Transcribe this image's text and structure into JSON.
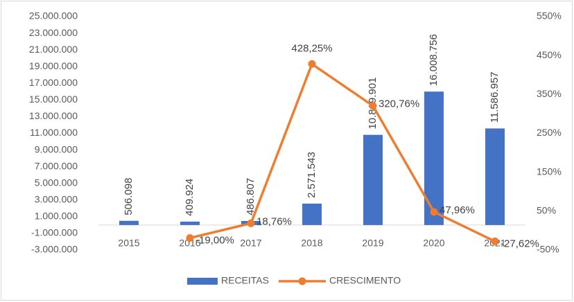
{
  "chart_data": {
    "type": "bar-line",
    "categories": [
      "2015",
      "2016",
      "2017",
      "2018",
      "2019",
      "2020",
      "2021"
    ],
    "series": [
      {
        "name": "RECEITAS",
        "type": "bar",
        "color": "#4472c4",
        "values": [
          506098,
          409924,
          486807,
          2571543,
          10819901,
          16008756,
          11586957
        ],
        "value_labels": [
          "506.098",
          "409.924",
          "486.807",
          "2.571.543",
          "10.819.901",
          "16.008.756",
          "11.586.957"
        ]
      },
      {
        "name": "CRESCIMENTO",
        "type": "line",
        "axis": "y2",
        "color": "#ed7d31",
        "values": [
          null,
          -19.0,
          18.76,
          428.25,
          320.76,
          47.96,
          -27.62
        ],
        "value_labels": [
          null,
          "-19,00%",
          "18,76%",
          "428,25%",
          "320,76%",
          "47,96%",
          "-27,62%"
        ]
      }
    ],
    "ylim": [
      -3000000,
      25000000
    ],
    "yticks": [
      {
        "value": -3000000,
        "label": "-3.000.000"
      },
      {
        "value": -1000000,
        "label": "-1.000.000"
      },
      {
        "value": 1000000,
        "label": "1.000.000"
      },
      {
        "value": 3000000,
        "label": "3.000.000"
      },
      {
        "value": 5000000,
        "label": "5.000.000"
      },
      {
        "value": 7000000,
        "label": "7.000.000"
      },
      {
        "value": 9000000,
        "label": "9.000.000"
      },
      {
        "value": 11000000,
        "label": "11.000.000"
      },
      {
        "value": 13000000,
        "label": "13.000.000"
      },
      {
        "value": 15000000,
        "label": "15.000.000"
      },
      {
        "value": 17000000,
        "label": "17.000.000"
      },
      {
        "value": 19000000,
        "label": "19.000.000"
      },
      {
        "value": 21000000,
        "label": "21.000.000"
      },
      {
        "value": 23000000,
        "label": "23.000.000"
      },
      {
        "value": 25000000,
        "label": "25.000.000"
      }
    ],
    "y2lim": [
      -50,
      550
    ],
    "y2ticks": [
      {
        "value": -50,
        "label": "-50%"
      },
      {
        "value": 50,
        "label": "50%"
      },
      {
        "value": 150,
        "label": "150%"
      },
      {
        "value": 250,
        "label": "250%"
      },
      {
        "value": 350,
        "label": "350%"
      },
      {
        "value": 450,
        "label": "450%"
      },
      {
        "value": 550,
        "label": "550%"
      }
    ],
    "legend": "bottom"
  }
}
